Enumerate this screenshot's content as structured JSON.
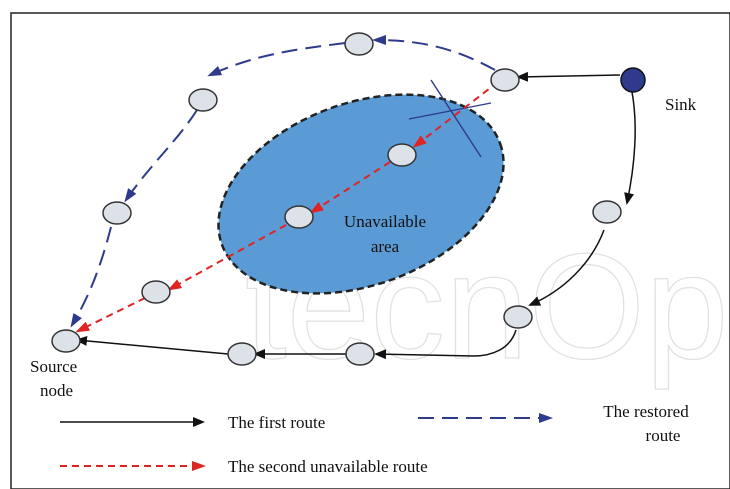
{
  "labels": {
    "sink": "Sink",
    "unavailable_line1": "Unavailable",
    "unavailable_line2": "area",
    "source_line1": "Source",
    "source_line2": "node"
  },
  "legend": {
    "first_route": "The first route",
    "restored_line1": "The restored",
    "restored_line2": "route",
    "second_unavailable": "The second unavailable route"
  },
  "watermark": "tecnOpen",
  "colors": {
    "area_fill": "#5b9bd5",
    "area_border": "#222222",
    "node_fill": "#dde2e8",
    "sink_fill": "#2e3a8c",
    "first_route": "#111111",
    "restored_route": "#2e3a8c",
    "second_route": "#e02424"
  }
}
